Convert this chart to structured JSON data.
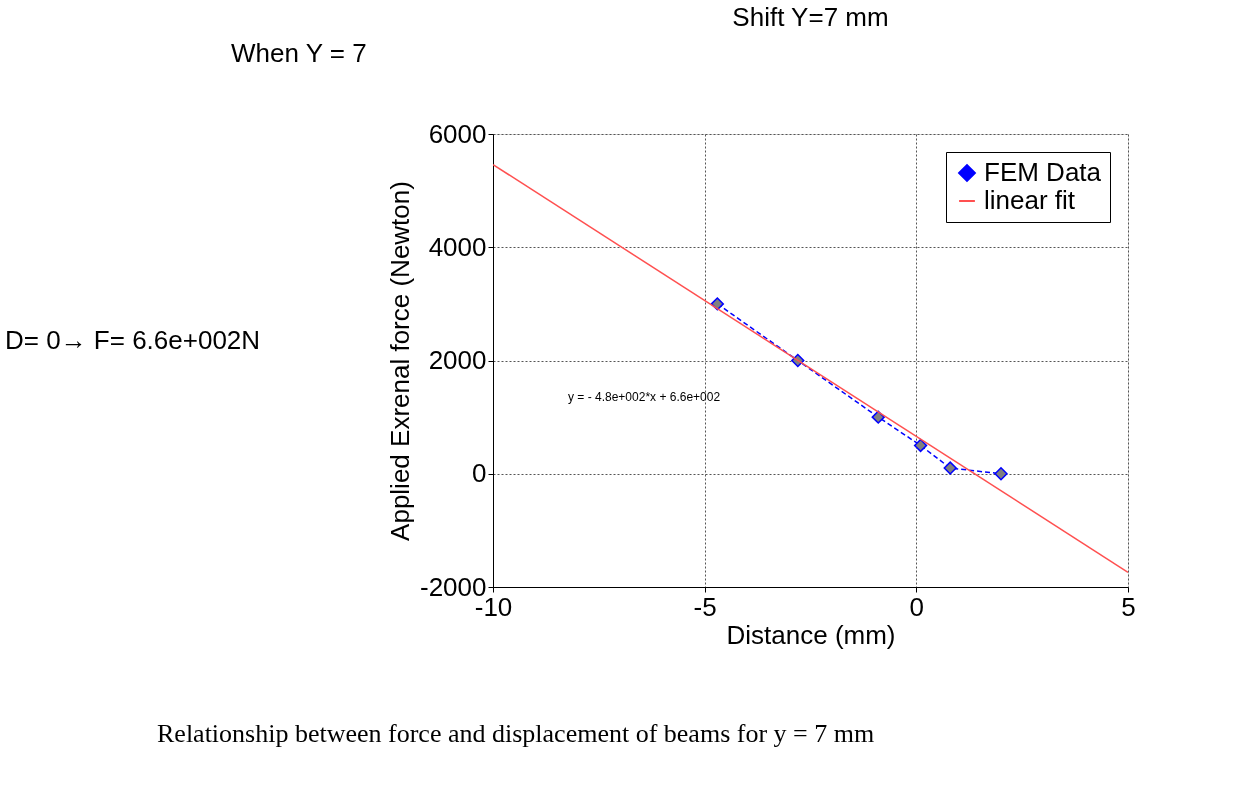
{
  "chart_data": {
    "type": "line",
    "title": "Shift Y=7 mm",
    "xlabel": "Distance (mm)",
    "ylabel": "Applied Exrenal force (Newton)",
    "xlim": [
      -10,
      5
    ],
    "xticks": [
      -10,
      -5,
      0,
      5
    ],
    "ylim": [
      -2000,
      6000
    ],
    "yticks": [
      -2000,
      0,
      2000,
      4000,
      6000
    ],
    "grid": true,
    "legend": "top right",
    "series": [
      {
        "name": "FEM Data",
        "color": "#0000ff",
        "marker": "diamond",
        "line_style": "dashed",
        "x": [
          -4.7,
          -2.8,
          -0.9,
          0.1,
          0.8,
          2.0
        ],
        "values": [
          3000,
          2000,
          1000,
          500,
          100,
          0
        ]
      },
      {
        "name": "linear fit",
        "color": "#ff5050",
        "marker": "none",
        "line_style": "solid",
        "x": [
          -10,
          5
        ],
        "values": [
          5460,
          -1740
        ]
      }
    ],
    "annotations": [
      "y = - 4.8e+002*x + 6.6e+002",
      "When Y = 7",
      "D= 0→ F= 6.6e+002N",
      "Relationship between force and displacement of beams for y = 7 mm"
    ]
  }
}
